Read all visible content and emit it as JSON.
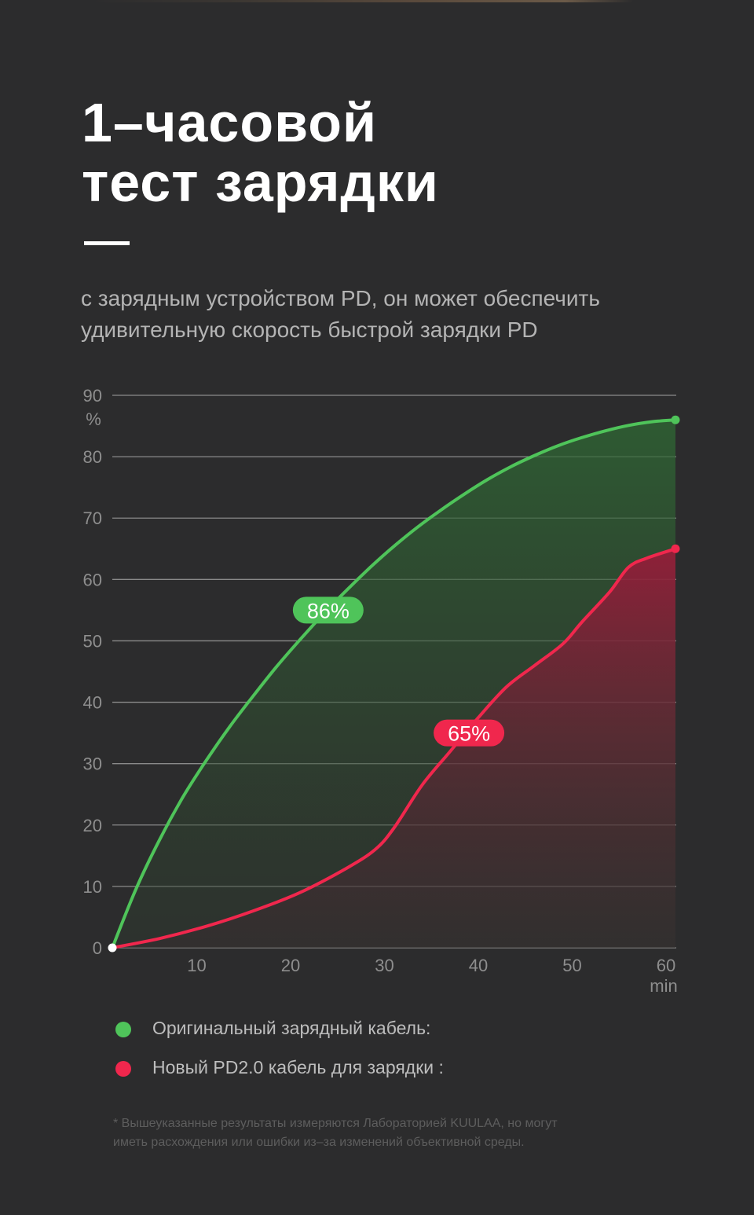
{
  "header": {
    "title_line1": "1–часовой",
    "title_line2": "тест зарядки",
    "subtitle_line1": "с зарядным устройством PD, он может обеспечить",
    "subtitle_line2": "удивительную скорость быстрой зарядки PD"
  },
  "chart_data": {
    "type": "area",
    "xlabel": "min",
    "ylabel": "%",
    "xlim": [
      0,
      60
    ],
    "ylim": [
      0,
      90
    ],
    "x_ticks": [
      10,
      20,
      30,
      40,
      50,
      60
    ],
    "y_ticks": [
      0,
      10,
      20,
      30,
      40,
      50,
      60,
      70,
      80,
      90
    ],
    "grid": true,
    "series": [
      {
        "name": "Оригинальный зарядный кабель:",
        "color": "#4fc45a",
        "callout": "86%",
        "callout_at": [
          23,
          55
        ],
        "x": [
          0,
          2.5,
          5,
          7.5,
          10,
          12.5,
          15,
          17.5,
          20,
          22.5,
          25,
          27.5,
          30,
          32.5,
          35,
          37.5,
          40,
          42.5,
          45,
          47.5,
          50,
          52.5,
          55,
          57.5,
          60
        ],
        "y": [
          0,
          9.5,
          17.5,
          24.5,
          30.5,
          36,
          41,
          45.8,
          50.2,
          54.4,
          58.3,
          62,
          65.4,
          68.5,
          71.3,
          73.9,
          76.3,
          78.4,
          80.2,
          81.8,
          83.1,
          84.2,
          85.1,
          85.7,
          86
        ]
      },
      {
        "name": "Новый PD2.0 кабель для зарядки :",
        "color": "#f0274d",
        "callout": "65%",
        "callout_at": [
          38,
          35
        ],
        "x": [
          0,
          5,
          10,
          15,
          20,
          25,
          28,
          30,
          33,
          36,
          39,
          42,
          45,
          48,
          50,
          53,
          55,
          57,
          60
        ],
        "y": [
          0,
          1.5,
          3.5,
          6,
          9,
          13,
          16,
          19.5,
          26.5,
          32,
          37.5,
          42.5,
          46,
          49.5,
          53,
          58,
          62,
          63.5,
          65
        ]
      }
    ]
  },
  "footnote": {
    "line1": "* Вышеуказанные результаты измеряются Лабораторией KUULAA, но могут",
    "line2": "иметь расхождения или ошибки из–за изменений объективной среды."
  }
}
